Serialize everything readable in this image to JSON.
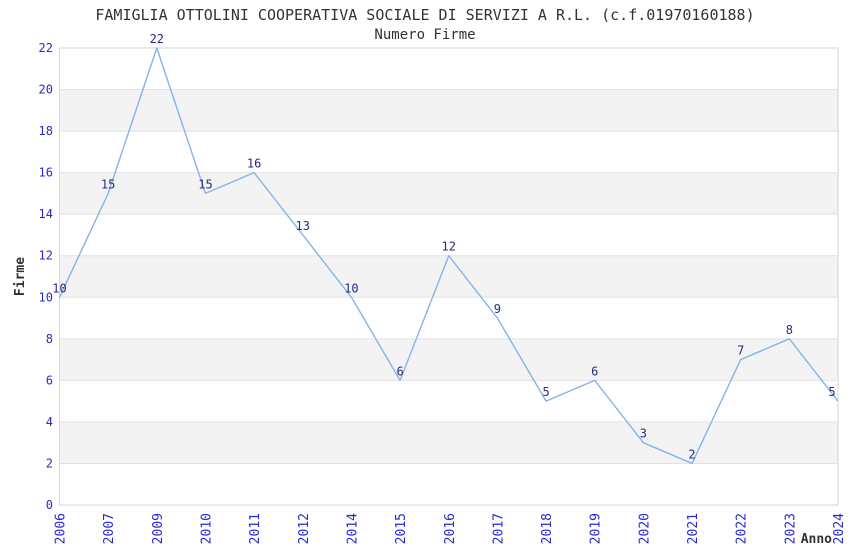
{
  "chart_data": {
    "type": "line",
    "title": "FAMIGLIA OTTOLINI COOPERATIVA SOCIALE DI SERVIZI A R.L. (c.f.01970160188)",
    "subtitle": "Numero Firme",
    "xlabel": "Anno",
    "ylabel": "Firme",
    "categories": [
      "2006",
      "2007",
      "2009",
      "2010",
      "2011",
      "2012",
      "2014",
      "2015",
      "2016",
      "2017",
      "2018",
      "2019",
      "2020",
      "2021",
      "2022",
      "2023",
      "2024"
    ],
    "values": [
      10,
      15,
      22,
      15,
      16,
      13,
      10,
      6,
      12,
      9,
      5,
      6,
      3,
      2,
      7,
      8,
      5
    ],
    "ylim": [
      0,
      22
    ],
    "ytick_step": 2,
    "grid": "horizontal-bands-every-2",
    "legend_position": "none",
    "data_labels_visible": true,
    "colors": {
      "line": "#85b4e6",
      "tick_label": "#2929cc",
      "data_label": "#2b2b80",
      "band_fill": "#f3f3f3",
      "grid_line": "#e2e2e2",
      "plot_border": "#d6d6d6",
      "text": "#333333"
    }
  }
}
